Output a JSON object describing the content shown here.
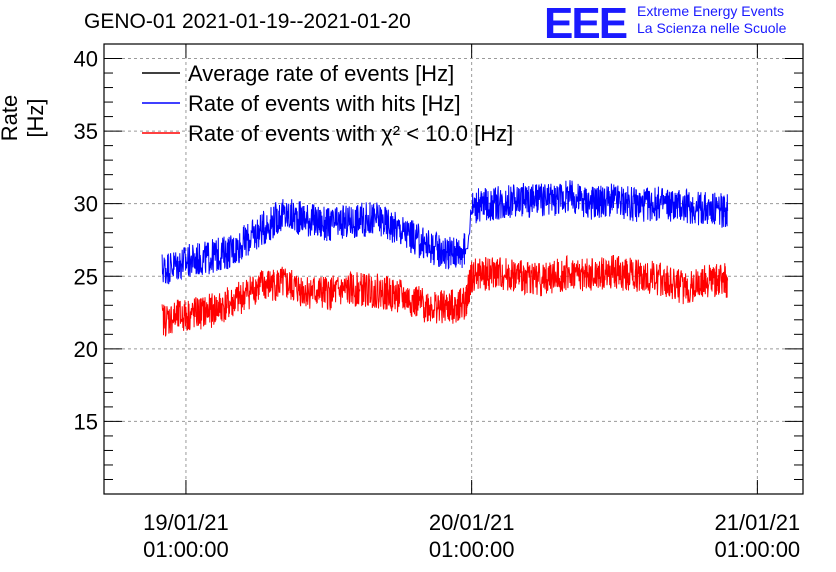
{
  "chart_data": {
    "type": "line",
    "title": "GENO-01 2021-01-19--2021-01-20",
    "ylabel": "Rate [Hz]",
    "xlabel": "",
    "ylim": [
      10,
      41
    ],
    "yticks": [
      15,
      20,
      25,
      30,
      35,
      40
    ],
    "xlim": [
      "2021-01-18 18:07",
      "2021-01-21 04:50"
    ],
    "xticks": [
      {
        "t": "2021-01-19 01:00:00",
        "date": "19/01/21",
        "time": "01:00:00"
      },
      {
        "t": "2021-01-20 01:00:00",
        "date": "20/01/21",
        "time": "01:00:00"
      },
      {
        "t": "2021-01-21 01:00:00",
        "date": "21/01/21",
        "time": "01:00:00"
      }
    ],
    "grid": true,
    "legend_position": "top-left",
    "series": [
      {
        "name": "Average rate of events [Hz]",
        "color": "#000000",
        "x": [],
        "y": []
      },
      {
        "name": "Rate of events with hits [Hz]",
        "color": "#0000ff",
        "x": [
          "2021-01-18 23:00",
          "2021-01-19 01:00",
          "2021-01-19 03:00",
          "2021-01-19 05:00",
          "2021-01-19 07:00",
          "2021-01-19 09:00",
          "2021-01-19 11:00",
          "2021-01-19 13:00",
          "2021-01-19 15:00",
          "2021-01-19 17:00",
          "2021-01-19 19:00",
          "2021-01-19 21:00",
          "2021-01-19 23:00",
          "2021-01-20 00:30",
          "2021-01-20 01:00",
          "2021-01-20 03:00",
          "2021-01-20 05:00",
          "2021-01-20 07:00",
          "2021-01-20 09:00",
          "2021-01-20 11:00",
          "2021-01-20 13:00",
          "2021-01-20 15:00",
          "2021-01-20 17:00",
          "2021-01-20 19:00",
          "2021-01-20 21:00",
          "2021-01-20 22:30"
        ],
        "y": [
          25.5,
          26.0,
          26.3,
          26.8,
          28.0,
          29.2,
          29.0,
          28.5,
          28.8,
          29.0,
          28.2,
          27.2,
          26.6,
          26.8,
          29.8,
          30.0,
          30.3,
          30.2,
          30.5,
          30.1,
          30.2,
          29.9,
          30.0,
          29.8,
          29.6,
          29.5
        ]
      },
      {
        "name": "Rate of events with χ² < 10.0 [Hz]",
        "color": "#ff0000",
        "x": [
          "2021-01-18 23:00",
          "2021-01-19 01:00",
          "2021-01-19 03:00",
          "2021-01-19 05:00",
          "2021-01-19 07:00",
          "2021-01-19 09:00",
          "2021-01-19 11:00",
          "2021-01-19 13:00",
          "2021-01-19 15:00",
          "2021-01-19 17:00",
          "2021-01-19 19:00",
          "2021-01-19 21:00",
          "2021-01-19 23:00",
          "2021-01-20 00:30",
          "2021-01-20 01:00",
          "2021-01-20 03:00",
          "2021-01-20 05:00",
          "2021-01-20 07:00",
          "2021-01-20 09:00",
          "2021-01-20 11:00",
          "2021-01-20 13:00",
          "2021-01-20 15:00",
          "2021-01-20 17:00",
          "2021-01-20 19:00",
          "2021-01-20 21:00",
          "2021-01-20 22:30"
        ],
        "y": [
          22.0,
          22.3,
          22.6,
          23.2,
          24.3,
          24.5,
          24.0,
          23.8,
          24.1,
          24.0,
          23.6,
          23.0,
          22.8,
          23.2,
          25.0,
          25.2,
          25.0,
          24.8,
          25.2,
          25.0,
          25.3,
          25.0,
          24.8,
          24.1,
          24.8,
          24.7
        ]
      }
    ]
  },
  "logo": {
    "letters": "EEE",
    "line1": "Extreme Energy Events",
    "line2": "La Scienza nelle Scuole"
  }
}
